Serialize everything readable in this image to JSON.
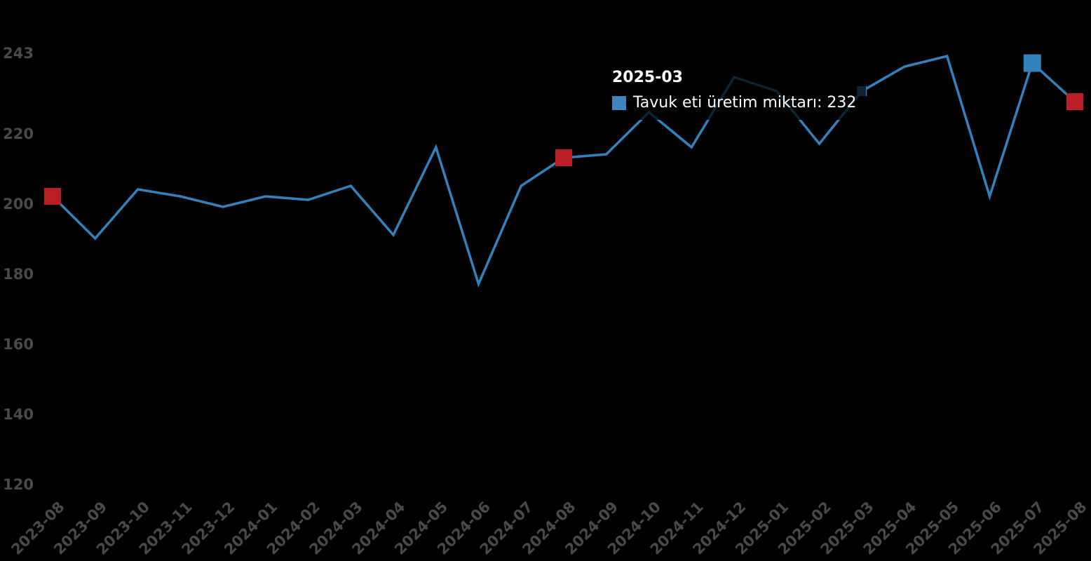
{
  "chart_data": {
    "type": "line",
    "title": "",
    "xlabel": "",
    "ylabel": "",
    "grid": false,
    "legend_position": "none",
    "background_color": "#000000",
    "line_color": "#3182bd",
    "axis_text_color": "#4a4a4a",
    "red_marker_color": "#b91f24",
    "blue_marker_color": "#3182bd",
    "categories": [
      "2023-08",
      "2023-09",
      "2023-10",
      "2023-11",
      "2023-12",
      "2024-01",
      "2024-02",
      "2024-03",
      "2024-04",
      "2024-05",
      "2024-06",
      "2024-07",
      "2024-08",
      "2024-09",
      "2024-10",
      "2024-11",
      "2024-12",
      "2025-01",
      "2025-02",
      "2025-03",
      "2025-04",
      "2025-05",
      "2025-06",
      "2025-07",
      "2025-08"
    ],
    "series": [
      {
        "name": "Tavuk eti üretim miktarı",
        "values": [
          202,
          190,
          204,
          202,
          199,
          202,
          201,
          205,
          191,
          216,
          177,
          205,
          213,
          214,
          226,
          216,
          236,
          232,
          217,
          232,
          239,
          242,
          202,
          240,
          229
        ]
      }
    ],
    "y_ticks": [
      243,
      220,
      200,
      180,
      160,
      140,
      120
    ],
    "ylim": [
      120,
      243
    ],
    "highlight_markers": [
      {
        "category": "2023-08",
        "index": 0,
        "shape": "square",
        "color": "#b91f24",
        "size": 24,
        "role": "red-highlight"
      },
      {
        "category": "2024-08",
        "index": 12,
        "shape": "square",
        "color": "#b91f24",
        "size": 24,
        "role": "red-highlight"
      },
      {
        "category": "2025-03",
        "index": 19,
        "shape": "square",
        "color": "#3182bd",
        "size": 14,
        "role": "hovered-point"
      },
      {
        "category": "2025-07",
        "index": 23,
        "shape": "square",
        "color": "#3182bd",
        "size": 25,
        "role": "blue-highlight"
      },
      {
        "category": "2025-08",
        "index": 24,
        "shape": "square",
        "color": "#b91f24",
        "size": 24,
        "role": "red-highlight"
      }
    ]
  },
  "tooltip": {
    "title": "2025-03",
    "swatch_color": "#3d85c0",
    "series_label": "Tavuk eti üretim miktarı",
    "value": 232,
    "text": "Tavuk eti üretim miktarı: 232"
  }
}
